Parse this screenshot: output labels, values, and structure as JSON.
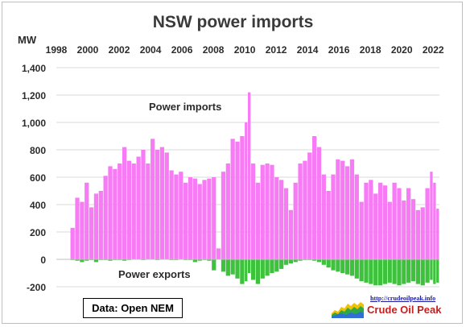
{
  "chart_data": {
    "type": "bar",
    "title": "NSW power imports",
    "ylabel": "MW",
    "ylim": [
      -200,
      1400
    ],
    "y_ticks": [
      "-200",
      "0",
      "200",
      "400",
      "600",
      "800",
      "1,000",
      "1,200",
      "1,400"
    ],
    "x_ticks": [
      "1998",
      "2000",
      "2002",
      "2004",
      "2006",
      "2008",
      "2010",
      "2012",
      "2014",
      "2016",
      "2018",
      "2020",
      "2022"
    ],
    "x_range": [
      1998,
      2022.4
    ],
    "grid": true,
    "annotations": [
      "Power imports",
      "Power exports"
    ],
    "series": [
      {
        "name": "Power imports",
        "color": "#f77bf5",
        "points": [
          [
            1998.9,
            230
          ],
          [
            1999.2,
            450
          ],
          [
            1999.5,
            420
          ],
          [
            1999.8,
            560
          ],
          [
            2000.1,
            380
          ],
          [
            2000.4,
            480
          ],
          [
            2000.7,
            500
          ],
          [
            2001.0,
            610
          ],
          [
            2001.3,
            680
          ],
          [
            2001.6,
            660
          ],
          [
            2001.9,
            700
          ],
          [
            2002.2,
            820
          ],
          [
            2002.5,
            720
          ],
          [
            2002.8,
            700
          ],
          [
            2003.1,
            750
          ],
          [
            2003.4,
            800
          ],
          [
            2003.7,
            700
          ],
          [
            2004.0,
            880
          ],
          [
            2004.3,
            800
          ],
          [
            2004.6,
            820
          ],
          [
            2004.9,
            780
          ],
          [
            2005.2,
            650
          ],
          [
            2005.5,
            620
          ],
          [
            2005.8,
            640
          ],
          [
            2006.1,
            560
          ],
          [
            2006.4,
            600
          ],
          [
            2006.7,
            590
          ],
          [
            2007.0,
            550
          ],
          [
            2007.3,
            580
          ],
          [
            2007.6,
            590
          ],
          [
            2007.9,
            600
          ],
          [
            2008.2,
            80
          ],
          [
            2008.5,
            640
          ],
          [
            2008.8,
            700
          ],
          [
            2009.1,
            880
          ],
          [
            2009.4,
            860
          ],
          [
            2009.7,
            900
          ],
          [
            2010.0,
            1000
          ],
          [
            2010.2,
            1220
          ],
          [
            2010.4,
            700
          ],
          [
            2010.7,
            560
          ],
          [
            2011.0,
            690
          ],
          [
            2011.3,
            700
          ],
          [
            2011.6,
            690
          ],
          [
            2011.9,
            600
          ],
          [
            2012.2,
            580
          ],
          [
            2012.5,
            520
          ],
          [
            2012.8,
            360
          ],
          [
            2013.1,
            560
          ],
          [
            2013.4,
            700
          ],
          [
            2013.7,
            720
          ],
          [
            2014.0,
            780
          ],
          [
            2014.3,
            900
          ],
          [
            2014.6,
            820
          ],
          [
            2014.9,
            620
          ],
          [
            2015.2,
            500
          ],
          [
            2015.5,
            620
          ],
          [
            2015.8,
            730
          ],
          [
            2016.1,
            720
          ],
          [
            2016.4,
            680
          ],
          [
            2016.7,
            730
          ],
          [
            2017.0,
            620
          ],
          [
            2017.3,
            420
          ],
          [
            2017.6,
            560
          ],
          [
            2017.9,
            580
          ],
          [
            2018.2,
            480
          ],
          [
            2018.5,
            560
          ],
          [
            2018.8,
            540
          ],
          [
            2019.1,
            420
          ],
          [
            2019.4,
            560
          ],
          [
            2019.7,
            520
          ],
          [
            2020.0,
            430
          ],
          [
            2020.3,
            520
          ],
          [
            2020.6,
            440
          ],
          [
            2020.9,
            360
          ],
          [
            2021.2,
            380
          ],
          [
            2021.5,
            520
          ],
          [
            2021.8,
            640
          ],
          [
            2022.0,
            560
          ],
          [
            2022.2,
            370
          ]
        ]
      },
      {
        "name": "Power exports",
        "color": "#3ec23e",
        "points": [
          [
            1998.9,
            -5
          ],
          [
            1999.2,
            -10
          ],
          [
            1999.5,
            -20
          ],
          [
            1999.8,
            -10
          ],
          [
            2000.1,
            -5
          ],
          [
            2000.4,
            -20
          ],
          [
            2000.7,
            -5
          ],
          [
            2001.0,
            -5
          ],
          [
            2001.3,
            -10
          ],
          [
            2001.6,
            -5
          ],
          [
            2001.9,
            -5
          ],
          [
            2002.2,
            -10
          ],
          [
            2002.5,
            -5
          ],
          [
            2002.8,
            0
          ],
          [
            2003.1,
            0
          ],
          [
            2003.4,
            -5
          ],
          [
            2003.7,
            0
          ],
          [
            2004.0,
            0
          ],
          [
            2004.3,
            -5
          ],
          [
            2004.6,
            0
          ],
          [
            2004.9,
            0
          ],
          [
            2005.2,
            -5
          ],
          [
            2005.5,
            -5
          ],
          [
            2005.8,
            0
          ],
          [
            2006.1,
            -5
          ],
          [
            2006.4,
            -5
          ],
          [
            2006.7,
            -20
          ],
          [
            2007.0,
            -10
          ],
          [
            2007.3,
            -5
          ],
          [
            2007.6,
            -10
          ],
          [
            2007.9,
            -80
          ],
          [
            2008.2,
            0
          ],
          [
            2008.5,
            -90
          ],
          [
            2008.8,
            -120
          ],
          [
            2009.1,
            -110
          ],
          [
            2009.4,
            -140
          ],
          [
            2009.7,
            -180
          ],
          [
            2010.0,
            -160
          ],
          [
            2010.2,
            -100
          ],
          [
            2010.4,
            -150
          ],
          [
            2010.7,
            -180
          ],
          [
            2011.0,
            -140
          ],
          [
            2011.3,
            -120
          ],
          [
            2011.6,
            -100
          ],
          [
            2011.9,
            -90
          ],
          [
            2012.2,
            -70
          ],
          [
            2012.5,
            -40
          ],
          [
            2012.8,
            -30
          ],
          [
            2013.1,
            -20
          ],
          [
            2013.4,
            -10
          ],
          [
            2013.7,
            -5
          ],
          [
            2014.0,
            -5
          ],
          [
            2014.3,
            -10
          ],
          [
            2014.6,
            -20
          ],
          [
            2014.9,
            -40
          ],
          [
            2015.2,
            -60
          ],
          [
            2015.5,
            -80
          ],
          [
            2015.8,
            -90
          ],
          [
            2016.1,
            -100
          ],
          [
            2016.4,
            -110
          ],
          [
            2016.7,
            -120
          ],
          [
            2017.0,
            -140
          ],
          [
            2017.3,
            -160
          ],
          [
            2017.6,
            -170
          ],
          [
            2017.9,
            -180
          ],
          [
            2018.2,
            -190
          ],
          [
            2018.5,
            -190
          ],
          [
            2018.8,
            -180
          ],
          [
            2019.1,
            -170
          ],
          [
            2019.4,
            -180
          ],
          [
            2019.7,
            -190
          ],
          [
            2020.0,
            -180
          ],
          [
            2020.3,
            -170
          ],
          [
            2020.6,
            -160
          ],
          [
            2020.9,
            -180
          ],
          [
            2021.2,
            -190
          ],
          [
            2021.5,
            -170
          ],
          [
            2021.8,
            -150
          ],
          [
            2022.0,
            -180
          ],
          [
            2022.2,
            -170
          ]
        ]
      }
    ]
  },
  "source_label": "Data: Open NEM",
  "logo": {
    "url_text": "http://crudeoilpeak.info",
    "name": "Crude Oil Peak"
  }
}
